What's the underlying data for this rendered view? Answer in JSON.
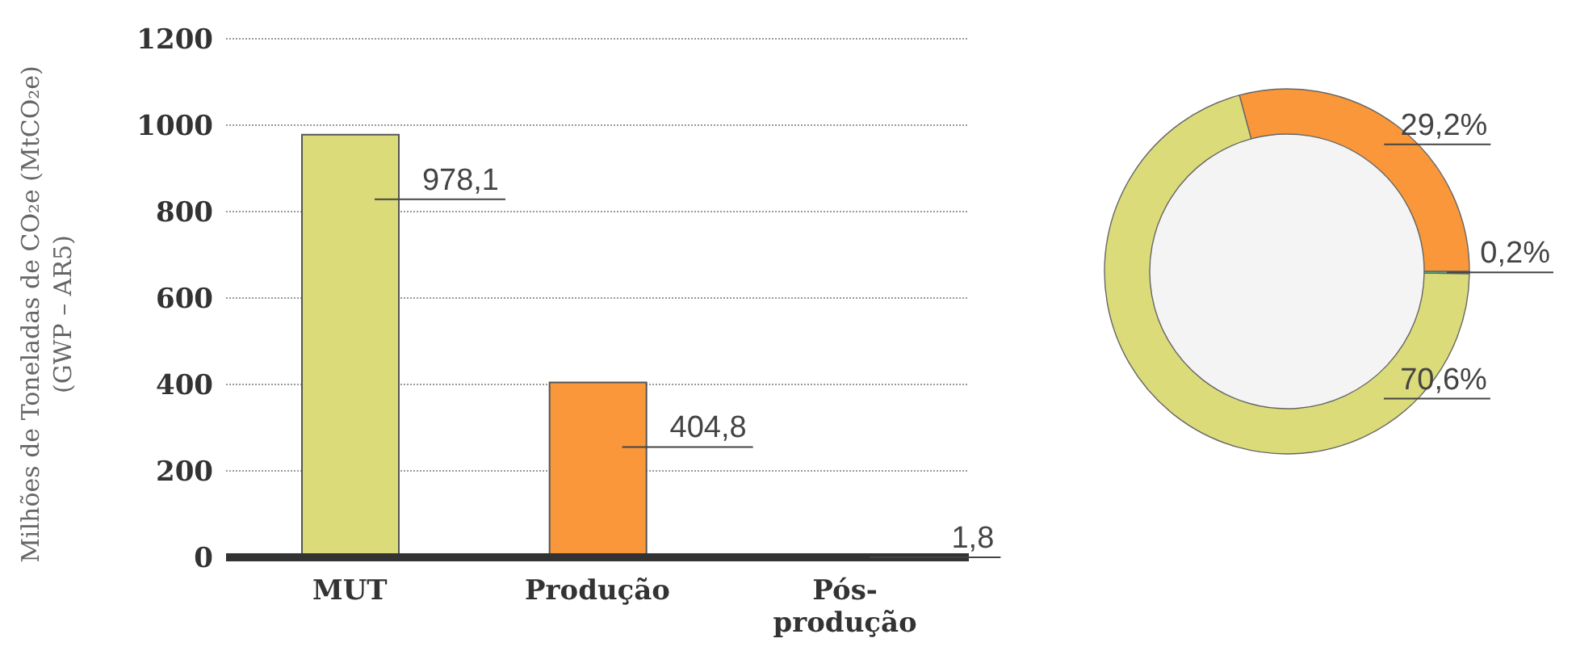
{
  "chart_data": [
    {
      "type": "bar",
      "ylabel": "Milhões de Toneladas de CO₂e (MtCO₂e)\n(GWP – AR5)",
      "categories": [
        "MUT",
        "Produção",
        "Pós-produção"
      ],
      "values": [
        978.1,
        404.8,
        1.8
      ],
      "colors": [
        "#dcdb7a",
        "#f9973a",
        "#4fb882"
      ],
      "value_labels": [
        "978,1",
        "404,8",
        "1,8"
      ],
      "ylim": [
        0,
        1200
      ],
      "yticks": [
        0,
        200,
        400,
        600,
        800,
        1000,
        1200
      ],
      "grid": "y",
      "legend": false
    },
    {
      "type": "donut",
      "categories": [
        null,
        null,
        null
      ],
      "values": [
        29.2,
        70.6,
        0.2
      ],
      "colors": [
        "#f9973a",
        "#dcdb7a",
        "#4fb882"
      ],
      "value_labels": [
        "29,2%",
        "70,6%",
        "0,2%"
      ],
      "legend": false
    }
  ]
}
